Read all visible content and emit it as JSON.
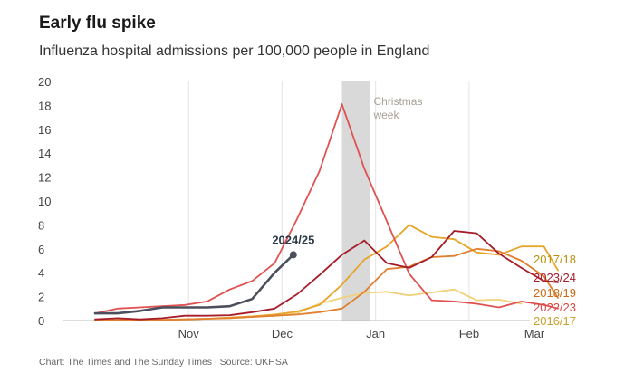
{
  "header": {
    "title": "Early flu spike",
    "subtitle": "Influenza hospital admissions per 100,000 people in England"
  },
  "footer": {
    "source": "Chart: The Times and The Sunday Times | Source: UKHSA"
  },
  "chart_data": {
    "type": "line",
    "title": "Early flu spike",
    "subtitle": "Influenza hospital admissions per 100,000 people in England",
    "xlabel": "",
    "ylabel": "",
    "ylim": [
      0,
      20
    ],
    "yticks": [
      0,
      2,
      4,
      6,
      8,
      10,
      12,
      14,
      16,
      18,
      20
    ],
    "xlim": [
      -0.3,
      4.65
    ],
    "xticks": [
      {
        "label": "Nov",
        "x": 1
      },
      {
        "label": "Dec",
        "x": 2
      },
      {
        "label": "Jan",
        "x": 3
      },
      {
        "label": "Feb",
        "x": 4
      },
      {
        "label": "Mar",
        "x": 4.95
      }
    ],
    "annotations": [
      {
        "type": "band",
        "x0": 2.64,
        "x1": 2.94,
        "label_line1": "Christmas",
        "label_line2": "week",
        "color": "#d9d9d9",
        "text_color": "#a89f95"
      }
    ],
    "series": [
      {
        "name": "2016/17",
        "color": "#f0d27a",
        "x": [
          0,
          0.24,
          0.48,
          0.72,
          0.96,
          1.2,
          1.44,
          1.68,
          1.92,
          2.16,
          2.4,
          2.64,
          2.88,
          3.12,
          3.36,
          3.6,
          3.84,
          4.08,
          4.32,
          4.56
        ],
        "y": [
          0,
          0,
          0.05,
          0.05,
          0.1,
          0.15,
          0.2,
          0.3,
          0.4,
          0.6,
          1.4,
          1.9,
          2.3,
          2.4,
          2.1,
          2.35,
          2.6,
          1.7,
          1.75,
          1.4
        ]
      },
      {
        "name": "2017/18",
        "color": "#e6a52b",
        "x": [
          0,
          0.24,
          0.48,
          0.72,
          0.96,
          1.2,
          1.44,
          1.68,
          1.92,
          2.16,
          2.4,
          2.64,
          2.88,
          3.12,
          3.36,
          3.6,
          3.84,
          4.08,
          4.32,
          4.56,
          4.8,
          4.95
        ],
        "y": [
          0,
          0.05,
          0.05,
          0.05,
          0.1,
          0.15,
          0.25,
          0.35,
          0.5,
          0.75,
          1.3,
          3.0,
          5.1,
          6.2,
          8.0,
          7.0,
          6.8,
          5.7,
          5.5,
          6.2,
          6.2,
          4.2
        ]
      },
      {
        "name": "2018/19",
        "color": "#e07f2e",
        "x": [
          0,
          0.24,
          0.48,
          0.72,
          0.96,
          1.2,
          1.44,
          1.68,
          1.92,
          2.16,
          2.4,
          2.64,
          2.88,
          3.12,
          3.36,
          3.6,
          3.84,
          4.08,
          4.32,
          4.56,
          4.8,
          4.95
        ],
        "y": [
          0,
          0.05,
          0.05,
          0.05,
          0.1,
          0.15,
          0.2,
          0.3,
          0.4,
          0.5,
          0.7,
          1.0,
          2.4,
          4.3,
          4.5,
          5.3,
          5.4,
          6.0,
          5.8,
          5.0,
          3.7,
          1.9
        ]
      },
      {
        "name": "2022/23",
        "color": "#e05252",
        "x": [
          0,
          0.24,
          0.48,
          0.72,
          0.96,
          1.2,
          1.44,
          1.68,
          1.92,
          2.16,
          2.4,
          2.64,
          2.88,
          3.12,
          3.36,
          3.6,
          3.84,
          4.08,
          4.32,
          4.56,
          4.8,
          4.95
        ],
        "y": [
          0.6,
          1.0,
          1.1,
          1.2,
          1.3,
          1.6,
          2.6,
          3.3,
          4.8,
          8.5,
          12.5,
          18.1,
          12.7,
          8.3,
          3.9,
          1.7,
          1.6,
          1.4,
          1.1,
          1.6,
          1.3,
          1.0
        ]
      },
      {
        "name": "2023/24",
        "color": "#a61c28",
        "x": [
          0,
          0.24,
          0.48,
          0.72,
          0.96,
          1.2,
          1.44,
          1.68,
          1.92,
          2.16,
          2.4,
          2.64,
          2.88,
          3.12,
          3.36,
          3.6,
          3.84,
          4.08,
          4.32,
          4.56,
          4.8,
          4.95
        ],
        "y": [
          0.1,
          0.2,
          0.1,
          0.2,
          0.4,
          0.4,
          0.45,
          0.7,
          1.0,
          2.2,
          3.8,
          5.5,
          6.7,
          4.8,
          4.4,
          5.3,
          7.5,
          7.3,
          5.6,
          4.4,
          3.3,
          3.2
        ]
      },
      {
        "name": "2024/25",
        "color": "#4b4e5c",
        "x": [
          0,
          0.24,
          0.48,
          0.72,
          0.96,
          1.2,
          1.44,
          1.68,
          1.92,
          2.12
        ],
        "y": [
          0.6,
          0.6,
          0.8,
          1.1,
          1.1,
          1.1,
          1.2,
          1.8,
          4.0,
          5.5
        ]
      }
    ]
  }
}
